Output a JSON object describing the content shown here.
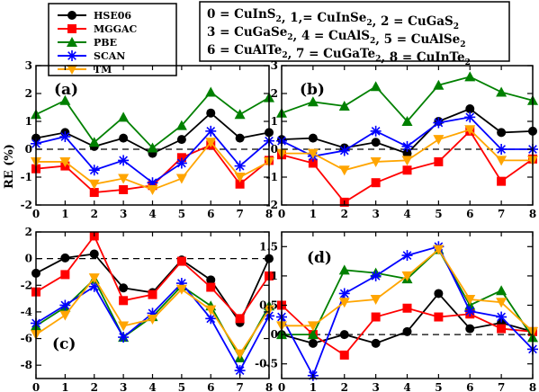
{
  "chart_data": {
    "type": "line",
    "ylabel": "RE (%)",
    "x": [
      0,
      1,
      2,
      3,
      4,
      5,
      6,
      7,
      8
    ],
    "series_meta": [
      {
        "name": "HSE06",
        "color": "#000000",
        "marker": "circle"
      },
      {
        "name": "MGGAC",
        "color": "#ff0000",
        "marker": "square"
      },
      {
        "name": "PBE",
        "color": "#008000",
        "marker": "triangle-up"
      },
      {
        "name": "SCAN",
        "color": "#0000ff",
        "marker": "asterisk"
      },
      {
        "name": "TM",
        "color": "#ffa500",
        "marker": "triangle-down"
      }
    ],
    "materials_key": [
      {
        "main": "0 = CuInS",
        "sub": "2",
        "tail": ", 1,= CuInSe",
        "sub2": "2",
        "tail2": ", 2 = CuGaS",
        "sub3": "2"
      },
      {
        "main": "3 = CuGaSe",
        "sub": "2",
        "tail": ", 4 = CuAlS",
        "sub2": "2",
        "tail2": ", 5 = CuAlSe",
        "sub3": "2"
      },
      {
        "main": "6 = CuAlTe",
        "sub": "2",
        "tail": ", 7 = CuGaTe",
        "sub2": "2",
        "tail2": ", 8 = CuInTe",
        "sub3": "2"
      }
    ],
    "panels": [
      {
        "label": "(a)",
        "ylim": [
          -2,
          3
        ],
        "yticks": [
          -2,
          -1,
          0,
          1,
          2,
          3
        ],
        "series": [
          {
            "name": "HSE06",
            "values": [
              0.4,
              0.6,
              0.1,
              0.4,
              -0.15,
              0.35,
              1.3,
              0.4,
              0.6
            ]
          },
          {
            "name": "MGGAC",
            "values": [
              -0.7,
              -0.6,
              -1.55,
              -1.45,
              -1.3,
              -0.3,
              0.15,
              -1.25,
              -0.4
            ]
          },
          {
            "name": "PBE",
            "values": [
              1.25,
              1.75,
              0.25,
              1.15,
              0.05,
              0.85,
              2.05,
              1.25,
              1.85
            ]
          },
          {
            "name": "SCAN",
            "values": [
              0.2,
              0.45,
              -0.75,
              -0.4,
              -1.2,
              -0.5,
              0.65,
              -0.6,
              0.3
            ]
          },
          {
            "name": "TM",
            "values": [
              -0.45,
              -0.45,
              -1.25,
              -1.05,
              -1.45,
              -1.05,
              0.25,
              -1.0,
              -0.45
            ]
          }
        ]
      },
      {
        "label": "(b)",
        "ylim": [
          -2,
          3
        ],
        "yticks": [
          -2,
          -1,
          0,
          1,
          2,
          3
        ],
        "series": [
          {
            "name": "HSE06",
            "values": [
              0.35,
              0.4,
              0.05,
              0.25,
              -0.15,
              1.0,
              1.45,
              0.6,
              0.65
            ]
          },
          {
            "name": "MGGAC",
            "values": [
              -0.2,
              -0.5,
              -1.9,
              -1.2,
              -0.75,
              -0.45,
              0.65,
              -1.15,
              -0.35
            ]
          },
          {
            "name": "PBE",
            "values": [
              1.3,
              1.7,
              1.55,
              2.25,
              1.0,
              2.3,
              2.6,
              2.05,
              1.75
            ]
          },
          {
            "name": "SCAN",
            "values": [
              0.3,
              -0.25,
              -0.05,
              0.65,
              0.1,
              0.95,
              1.15,
              0.0,
              0.0
            ]
          },
          {
            "name": "TM",
            "values": [
              -0.15,
              -0.15,
              -0.75,
              -0.45,
              -0.4,
              0.35,
              0.7,
              -0.4,
              -0.4
            ]
          }
        ]
      },
      {
        "label": "(c)",
        "ylim": [
          -9,
          2
        ],
        "yticks": [
          -8,
          -6,
          -4,
          -2,
          0,
          2
        ],
        "series": [
          {
            "name": "HSE06",
            "values": [
              -1.1,
              0.05,
              0.35,
              -2.2,
              -2.55,
              -0.1,
              -1.6,
              -4.8,
              0.0
            ]
          },
          {
            "name": "MGGAC",
            "values": [
              -2.5,
              -1.2,
              1.7,
              -3.15,
              -2.7,
              -0.2,
              -2.15,
              -4.5,
              -1.3
            ]
          },
          {
            "name": "PBE",
            "values": [
              -5.05,
              -3.65,
              -1.55,
              -5.9,
              -4.35,
              -2.05,
              -3.55,
              -7.45,
              -3.55
            ]
          },
          {
            "name": "SCAN",
            "values": [
              -4.85,
              -3.5,
              -2.1,
              -5.9,
              -4.1,
              -1.85,
              -4.5,
              -8.4,
              -4.3
            ]
          },
          {
            "name": "TM",
            "values": [
              -5.7,
              -4.25,
              -1.45,
              -5.05,
              -4.55,
              -2.3,
              -3.85,
              -7.15,
              -3.85
            ]
          }
        ]
      },
      {
        "label": "(d)",
        "ylim": [
          -0.75,
          1.75
        ],
        "yticks": [
          -0.5,
          0,
          0.5,
          1,
          1.5
        ],
        "series": [
          {
            "name": "HSE06",
            "values": [
              0.0,
              -0.15,
              0.0,
              -0.15,
              0.05,
              0.7,
              0.1,
              0.2,
              0.05
            ]
          },
          {
            "name": "MGGAC",
            "values": [
              0.5,
              0.0,
              -0.35,
              0.3,
              0.45,
              0.3,
              0.35,
              0.1,
              0.05
            ]
          },
          {
            "name": "PBE",
            "values": [
              0.0,
              0.0,
              1.1,
              1.05,
              0.95,
              1.45,
              0.5,
              0.75,
              -0.05
            ]
          },
          {
            "name": "SCAN",
            "values": [
              0.3,
              -0.7,
              0.7,
              1.0,
              1.35,
              1.5,
              0.4,
              0.3,
              -0.25
            ]
          },
          {
            "name": "TM",
            "values": [
              0.15,
              0.15,
              0.55,
              0.6,
              1.0,
              1.45,
              0.6,
              0.55,
              0.05
            ]
          }
        ]
      }
    ]
  }
}
